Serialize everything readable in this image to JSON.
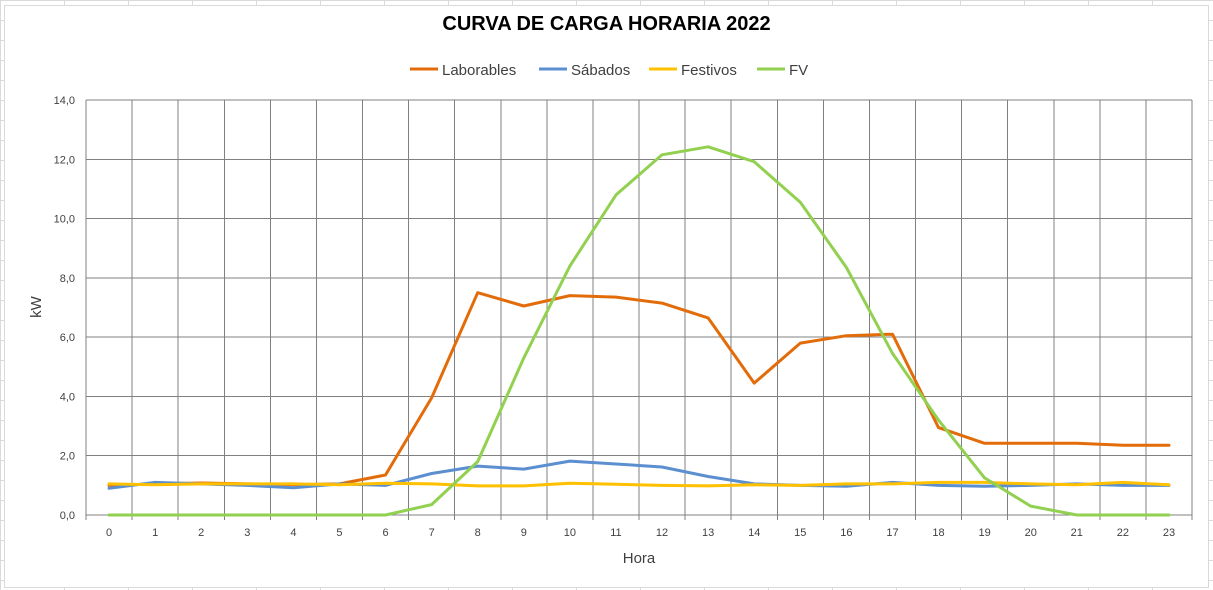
{
  "chart_data": {
    "type": "line",
    "title": "CURVA DE CARGA HORARIA  2022",
    "xlabel": "Hora",
    "ylabel": "kW",
    "categories": [
      "0",
      "1",
      "2",
      "3",
      "4",
      "5",
      "6",
      "7",
      "8",
      "9",
      "10",
      "11",
      "12",
      "13",
      "14",
      "15",
      "16",
      "17",
      "18",
      "19",
      "20",
      "21",
      "22",
      "23"
    ],
    "ylim": [
      0,
      14
    ],
    "yticks": [
      "0,0",
      "2,0",
      "4,0",
      "6,0",
      "8,0",
      "10,0",
      "12,0",
      "14,0"
    ],
    "grid": true,
    "legend_position": "top",
    "series": [
      {
        "name": "Laborables",
        "color": "#e36c0a",
        "values": [
          1.0,
          1.05,
          1.08,
          1.05,
          1.02,
          1.05,
          1.35,
          3.95,
          7.5,
          7.05,
          7.4,
          7.35,
          7.15,
          6.65,
          4.45,
          5.8,
          6.05,
          6.1,
          2.95,
          2.42,
          2.42,
          2.42,
          2.35,
          2.35
        ]
      },
      {
        "name": "Sábados",
        "color": "#5b8fd0",
        "values": [
          0.9,
          1.1,
          1.05,
          1.0,
          0.92,
          1.05,
          1.0,
          1.4,
          1.65,
          1.55,
          1.82,
          1.72,
          1.62,
          1.3,
          1.05,
          1.0,
          0.97,
          1.1,
          1.0,
          0.97,
          1.0,
          1.05,
          1.0,
          1.0
        ]
      },
      {
        "name": "Festivos",
        "color": "#ffc000",
        "values": [
          1.05,
          1.02,
          1.05,
          1.05,
          1.05,
          1.02,
          1.07,
          1.05,
          0.98,
          0.98,
          1.07,
          1.04,
          1.0,
          0.98,
          1.02,
          1.0,
          1.05,
          1.05,
          1.1,
          1.1,
          1.05,
          1.02,
          1.1,
          1.02
        ]
      },
      {
        "name": "FV",
        "color": "#92d050",
        "values": [
          0,
          0,
          0,
          0,
          0,
          0,
          0,
          0.35,
          1.8,
          5.3,
          8.4,
          10.8,
          12.15,
          12.42,
          11.92,
          10.55,
          8.35,
          5.45,
          3.2,
          1.25,
          0.3,
          0,
          0,
          0
        ]
      }
    ]
  }
}
